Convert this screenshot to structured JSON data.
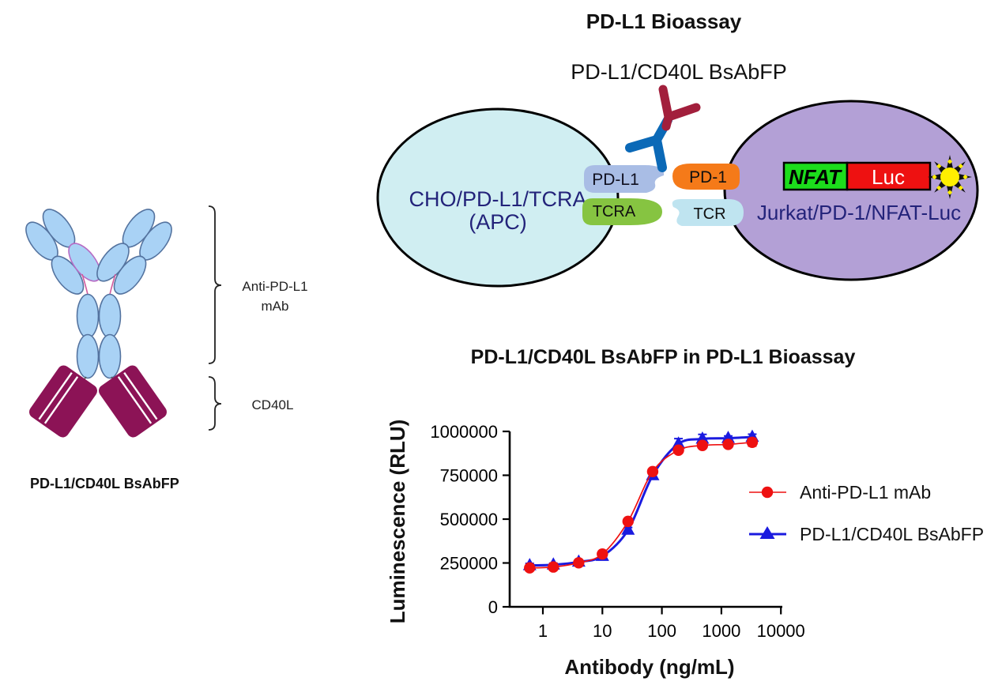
{
  "figure": {
    "title": "PD-L1 Bioassay",
    "bsabfp_label": "PD-L1/CD40L BsAbFP"
  },
  "assay_diagram": {
    "apc_cell": {
      "line1": "CHO/PD-L1/TCRA",
      "line2": "(APC)",
      "fill": "#d0eef2"
    },
    "effector_cell": {
      "label": "Jurkat/PD-1/NFAT-Luc",
      "fill": "#b3a0d6"
    },
    "receptors": {
      "pdl1": {
        "label": "PD-L1",
        "fill": "#a9bde5"
      },
      "tcra": {
        "label": "TCRA",
        "fill": "#86c441"
      },
      "pd1": {
        "label": "PD-1",
        "fill": "#f57a19"
      },
      "tcr": {
        "label": "TCR",
        "fill": "#bfe4f0"
      }
    },
    "reporter": {
      "nfat": {
        "label": "NFAT",
        "fill": "#1cdd1c"
      },
      "luc": {
        "label": "Luc",
        "fill": "#ee1111"
      },
      "glow": {
        "spike": "#111111",
        "center": "#ffee00"
      }
    },
    "antibody_colors": {
      "blue": "#0b69b7",
      "maroon": "#a21f3c"
    }
  },
  "antibody_panel": {
    "bracket_labels": {
      "top_line1": "Anti-PD-L1",
      "top_line2": "mAb",
      "bottom": "CD40L"
    },
    "caption": "PD-L1/CD40L BsAbFP",
    "colors": {
      "domain_fill": "#a9d2f5",
      "domain_stroke": "#54739f",
      "hinge": "#d05a9e",
      "cd40l_fill": "#8c1356"
    }
  },
  "chart_data": {
    "type": "line",
    "title": "PD-L1/CD40L BsAbFP in PD-L1 Bioassay",
    "xlabel": "Antibody (ng/mL)",
    "ylabel": "Luminescence (RLU)",
    "x_scale": "log",
    "xlim": [
      0.3,
      10000
    ],
    "ylim": [
      0,
      1000000
    ],
    "grid": false,
    "legend_position": "right",
    "x_ticks": [
      {
        "label": "1",
        "value": 1
      },
      {
        "label": "10",
        "value": 10
      },
      {
        "label": "100",
        "value": 100
      },
      {
        "label": "1000",
        "value": 1000
      },
      {
        "label": "10000",
        "value": 10000
      }
    ],
    "y_ticks": [
      {
        "label": "0",
        "value": 0
      },
      {
        "label": "250000",
        "value": 250000
      },
      {
        "label": "500000",
        "value": 500000
      },
      {
        "label": "750000",
        "value": 750000
      },
      {
        "label": "1000000",
        "value": 1000000
      }
    ],
    "x": [
      0.6,
      1.5,
      4,
      10,
      27,
      70,
      190,
      480,
      1300,
      3300
    ],
    "series": [
      {
        "name": "Anti-PD-L1 mAb",
        "color": "#ee1111",
        "marker": "circle",
        "values": [
          222000,
          227000,
          251000,
          301000,
          487000,
          771000,
          893000,
          920000,
          926000,
          938000
        ],
        "errors": [
          9000,
          9000,
          8000,
          8000,
          12000,
          12000,
          12000,
          12000,
          12000,
          22000
        ]
      },
      {
        "name": "PD-L1/CD40L BsAbFP",
        "color": "#1a1adf",
        "marker": "triangle",
        "values": [
          236000,
          240000,
          256000,
          289000,
          438000,
          749000,
          929000,
          957000,
          961000,
          968000
        ],
        "errors": [
          12000,
          9000,
          8000,
          8000,
          14000,
          12000,
          30000,
          26000,
          13000,
          16000
        ]
      }
    ]
  }
}
